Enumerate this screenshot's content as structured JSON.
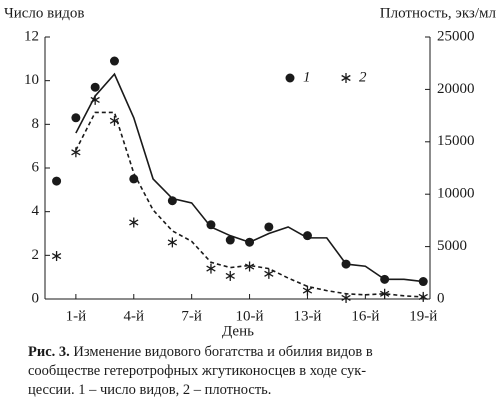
{
  "chart_data": {
    "type": "line",
    "y_label": "Число видов",
    "y2_label": "Плотность, экз/мл",
    "x_label": "День",
    "xlim": [
      -0.6,
      19.35
    ],
    "xticks": [
      {
        "value": 1,
        "label": "1-й"
      },
      {
        "value": 4,
        "label": "4-й"
      },
      {
        "value": 7,
        "label": "7-й"
      },
      {
        "value": 10,
        "label": "10-й"
      },
      {
        "value": 13,
        "label": "13-й"
      },
      {
        "value": 16,
        "label": "16-й"
      },
      {
        "value": 19,
        "label": "19-й"
      }
    ],
    "ylim": [
      0,
      12
    ],
    "yticks": [
      0,
      2,
      4,
      6,
      8,
      10,
      12
    ],
    "y2lim": [
      0,
      25000
    ],
    "y2ticks": [
      0,
      5000,
      10000,
      15000,
      20000,
      25000
    ],
    "color": "#1a1a1a",
    "series": [
      {
        "name": "1",
        "marker": "circle",
        "line_style": "solid",
        "x": [
          0,
          1,
          2,
          3,
          4,
          6,
          8,
          9,
          10,
          11,
          13,
          15,
          17,
          19
        ],
        "values": [
          5.4,
          8.3,
          9.7,
          10.9,
          5.5,
          4.5,
          3.4,
          2.7,
          2.6,
          3.3,
          2.9,
          1.6,
          0.9,
          0.8
        ],
        "line_x": [
          1,
          2,
          3,
          4,
          5,
          6,
          7,
          8,
          9,
          10,
          11,
          12,
          13,
          14,
          15,
          16,
          17,
          18,
          19
        ],
        "line_values": [
          7.6,
          9.3,
          10.3,
          8.3,
          5.5,
          4.6,
          4.4,
          3.3,
          2.9,
          2.6,
          3.0,
          3.3,
          2.8,
          2.8,
          1.6,
          1.5,
          0.9,
          0.9,
          0.8
        ]
      },
      {
        "name": "2",
        "marker": "asterisk",
        "line_style": "dashed",
        "axis": "y2",
        "x": [
          0,
          1,
          2,
          3,
          4,
          6,
          8,
          9,
          10,
          11,
          13,
          15,
          17,
          19
        ],
        "values": [
          4100,
          14000,
          19000,
          17000,
          7300,
          5400,
          2900,
          2200,
          3100,
          2400,
          800,
          100,
          500,
          200
        ],
        "line_x": [
          1,
          2,
          3,
          4,
          5,
          6,
          7,
          8,
          9,
          10,
          11,
          12,
          13,
          14,
          15,
          16,
          17,
          18,
          19
        ],
        "line_values": [
          14200,
          17800,
          17800,
          12000,
          8500,
          6500,
          5500,
          3500,
          3000,
          3200,
          2900,
          2000,
          1200,
          800,
          500,
          400,
          500,
          300,
          200
        ]
      }
    ]
  },
  "caption": {
    "label": "Рис. 3.",
    "lines": [
      "Изменение видового богатства и обилия видов в",
      "сообществе гетеротрофных жгутиконосцев в ходе сук-",
      "цессии. 1 – число видов, 2 – плотность."
    ]
  }
}
